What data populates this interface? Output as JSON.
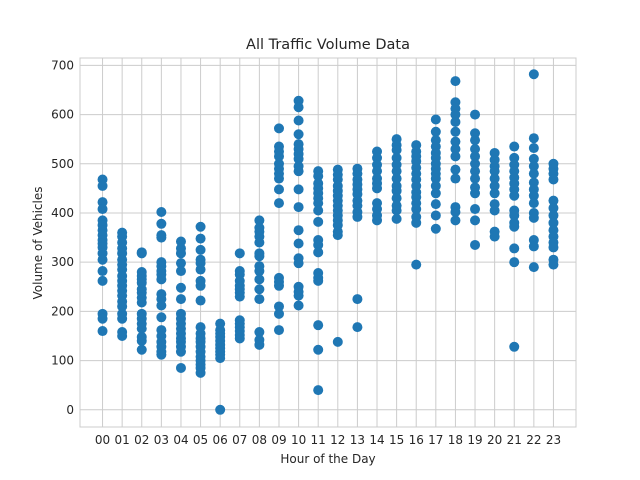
{
  "chart_data": {
    "type": "scatter",
    "title": "All Traffic Volume Data",
    "xlabel": "Hour of the Day",
    "ylabel": "Volume of Vehicles",
    "categories": [
      "00",
      "01",
      "02",
      "03",
      "04",
      "05",
      "06",
      "07",
      "08",
      "09",
      "10",
      "11",
      "12",
      "13",
      "14",
      "15",
      "16",
      "17",
      "18",
      "19",
      "20",
      "21",
      "22",
      "23"
    ],
    "ylim": [
      -35,
      715
    ],
    "yticks": [
      0,
      100,
      200,
      300,
      400,
      500,
      600,
      700
    ],
    "grid": true,
    "color": "#1f77b4",
    "points": [
      [
        "00",
        468
      ],
      [
        "00",
        455
      ],
      [
        "00",
        422
      ],
      [
        "00",
        408
      ],
      [
        "00",
        385
      ],
      [
        "00",
        375
      ],
      [
        "00",
        365
      ],
      [
        "00",
        355
      ],
      [
        "00",
        345
      ],
      [
        "00",
        338
      ],
      [
        "00",
        330
      ],
      [
        "00",
        318
      ],
      [
        "00",
        305
      ],
      [
        "00",
        282
      ],
      [
        "00",
        262
      ],
      [
        "00",
        195
      ],
      [
        "00",
        185
      ],
      [
        "00",
        160
      ],
      [
        "01",
        360
      ],
      [
        "01",
        352
      ],
      [
        "01",
        340
      ],
      [
        "01",
        328
      ],
      [
        "01",
        318
      ],
      [
        "01",
        305
      ],
      [
        "01",
        295
      ],
      [
        "01",
        285
      ],
      [
        "01",
        272
      ],
      [
        "01",
        262
      ],
      [
        "01",
        252
      ],
      [
        "01",
        242
      ],
      [
        "01",
        232
      ],
      [
        "01",
        220
      ],
      [
        "01",
        210
      ],
      [
        "01",
        195
      ],
      [
        "01",
        185
      ],
      [
        "01",
        158
      ],
      [
        "01",
        150
      ],
      [
        "02",
        320
      ],
      [
        "02",
        318
      ],
      [
        "02",
        280
      ],
      [
        "02",
        272
      ],
      [
        "02",
        265
      ],
      [
        "02",
        258
      ],
      [
        "02",
        245
      ],
      [
        "02",
        238
      ],
      [
        "02",
        228
      ],
      [
        "02",
        218
      ],
      [
        "02",
        195
      ],
      [
        "02",
        185
      ],
      [
        "02",
        175
      ],
      [
        "02",
        165
      ],
      [
        "02",
        148
      ],
      [
        "02",
        140
      ],
      [
        "02",
        122
      ],
      [
        "03",
        402
      ],
      [
        "03",
        378
      ],
      [
        "03",
        355
      ],
      [
        "03",
        350
      ],
      [
        "03",
        300
      ],
      [
        "03",
        292
      ],
      [
        "03",
        282
      ],
      [
        "03",
        275
      ],
      [
        "03",
        265
      ],
      [
        "03",
        235
      ],
      [
        "03",
        225
      ],
      [
        "03",
        212
      ],
      [
        "03",
        188
      ],
      [
        "03",
        162
      ],
      [
        "03",
        150
      ],
      [
        "03",
        138
      ],
      [
        "03",
        128
      ],
      [
        "03",
        118
      ],
      [
        "03",
        112
      ],
      [
        "04",
        342
      ],
      [
        "04",
        328
      ],
      [
        "04",
        318
      ],
      [
        "04",
        298
      ],
      [
        "04",
        282
      ],
      [
        "04",
        248
      ],
      [
        "04",
        225
      ],
      [
        "04",
        195
      ],
      [
        "04",
        185
      ],
      [
        "04",
        175
      ],
      [
        "04",
        165
      ],
      [
        "04",
        155
      ],
      [
        "04",
        145
      ],
      [
        "04",
        138
      ],
      [
        "04",
        128
      ],
      [
        "04",
        118
      ],
      [
        "04",
        85
      ],
      [
        "05",
        372
      ],
      [
        "05",
        348
      ],
      [
        "05",
        325
      ],
      [
        "05",
        305
      ],
      [
        "05",
        298
      ],
      [
        "05",
        285
      ],
      [
        "05",
        262
      ],
      [
        "05",
        252
      ],
      [
        "05",
        222
      ],
      [
        "05",
        168
      ],
      [
        "05",
        155
      ],
      [
        "05",
        145
      ],
      [
        "05",
        138
      ],
      [
        "05",
        128
      ],
      [
        "05",
        118
      ],
      [
        "05",
        108
      ],
      [
        "05",
        100
      ],
      [
        "05",
        92
      ],
      [
        "05",
        85
      ],
      [
        "05",
        75
      ],
      [
        "06",
        175
      ],
      [
        "06",
        162
      ],
      [
        "06",
        155
      ],
      [
        "06",
        148
      ],
      [
        "06",
        140
      ],
      [
        "06",
        132
      ],
      [
        "06",
        125
      ],
      [
        "06",
        118
      ],
      [
        "06",
        112
      ],
      [
        "06",
        105
      ],
      [
        "06",
        0
      ],
      [
        "07",
        318
      ],
      [
        "07",
        282
      ],
      [
        "07",
        275
      ],
      [
        "07",
        262
      ],
      [
        "07",
        252
      ],
      [
        "07",
        245
      ],
      [
        "07",
        238
      ],
      [
        "07",
        230
      ],
      [
        "07",
        182
      ],
      [
        "07",
        175
      ],
      [
        "07",
        168
      ],
      [
        "07",
        160
      ],
      [
        "07",
        152
      ],
      [
        "07",
        145
      ],
      [
        "08",
        385
      ],
      [
        "08",
        370
      ],
      [
        "08",
        362
      ],
      [
        "08",
        352
      ],
      [
        "08",
        340
      ],
      [
        "08",
        318
      ],
      [
        "08",
        312
      ],
      [
        "08",
        292
      ],
      [
        "08",
        282
      ],
      [
        "08",
        265
      ],
      [
        "08",
        245
      ],
      [
        "08",
        225
      ],
      [
        "08",
        158
      ],
      [
        "08",
        142
      ],
      [
        "08",
        132
      ],
      [
        "09",
        572
      ],
      [
        "09",
        535
      ],
      [
        "09",
        525
      ],
      [
        "09",
        515
      ],
      [
        "09",
        500
      ],
      [
        "09",
        490
      ],
      [
        "09",
        480
      ],
      [
        "09",
        470
      ],
      [
        "09",
        448
      ],
      [
        "09",
        420
      ],
      [
        "09",
        268
      ],
      [
        "09",
        260
      ],
      [
        "09",
        252
      ],
      [
        "09",
        210
      ],
      [
        "09",
        195
      ],
      [
        "09",
        162
      ],
      [
        "10",
        628
      ],
      [
        "10",
        615
      ],
      [
        "10",
        588
      ],
      [
        "10",
        560
      ],
      [
        "10",
        540
      ],
      [
        "10",
        530
      ],
      [
        "10",
        520
      ],
      [
        "10",
        510
      ],
      [
        "10",
        495
      ],
      [
        "10",
        485
      ],
      [
        "10",
        448
      ],
      [
        "10",
        412
      ],
      [
        "10",
        365
      ],
      [
        "10",
        338
      ],
      [
        "10",
        308
      ],
      [
        "10",
        298
      ],
      [
        "10",
        250
      ],
      [
        "10",
        240
      ],
      [
        "10",
        232
      ],
      [
        "10",
        212
      ],
      [
        "11",
        485
      ],
      [
        "11",
        475
      ],
      [
        "11",
        460
      ],
      [
        "11",
        450
      ],
      [
        "11",
        440
      ],
      [
        "11",
        430
      ],
      [
        "11",
        420
      ],
      [
        "11",
        405
      ],
      [
        "11",
        382
      ],
      [
        "11",
        345
      ],
      [
        "11",
        335
      ],
      [
        "11",
        320
      ],
      [
        "11",
        278
      ],
      [
        "11",
        268
      ],
      [
        "11",
        262
      ],
      [
        "11",
        172
      ],
      [
        "11",
        122
      ],
      [
        "11",
        40
      ],
      [
        "12",
        488
      ],
      [
        "12",
        478
      ],
      [
        "12",
        468
      ],
      [
        "12",
        455
      ],
      [
        "12",
        445
      ],
      [
        "12",
        435
      ],
      [
        "12",
        425
      ],
      [
        "12",
        415
      ],
      [
        "12",
        405
      ],
      [
        "12",
        395
      ],
      [
        "12",
        385
      ],
      [
        "12",
        375
      ],
      [
        "12",
        362
      ],
      [
        "12",
        355
      ],
      [
        "12",
        138
      ],
      [
        "13",
        490
      ],
      [
        "13",
        480
      ],
      [
        "13",
        468
      ],
      [
        "13",
        458
      ],
      [
        "13",
        448
      ],
      [
        "13",
        438
      ],
      [
        "13",
        425
      ],
      [
        "13",
        415
      ],
      [
        "13",
        402
      ],
      [
        "13",
        392
      ],
      [
        "13",
        225
      ],
      [
        "13",
        168
      ],
      [
        "14",
        525
      ],
      [
        "14",
        512
      ],
      [
        "14",
        498
      ],
      [
        "14",
        485
      ],
      [
        "14",
        470
      ],
      [
        "14",
        460
      ],
      [
        "14",
        450
      ],
      [
        "14",
        420
      ],
      [
        "14",
        408
      ],
      [
        "14",
        395
      ],
      [
        "14",
        385
      ],
      [
        "15",
        550
      ],
      [
        "15",
        538
      ],
      [
        "15",
        528
      ],
      [
        "15",
        512
      ],
      [
        "15",
        498
      ],
      [
        "15",
        485
      ],
      [
        "15",
        470
      ],
      [
        "15",
        455
      ],
      [
        "15",
        445
      ],
      [
        "15",
        430
      ],
      [
        "15",
        415
      ],
      [
        "15",
        405
      ],
      [
        "15",
        388
      ],
      [
        "16",
        538
      ],
      [
        "16",
        525
      ],
      [
        "16",
        515
      ],
      [
        "16",
        505
      ],
      [
        "16",
        492
      ],
      [
        "16",
        480
      ],
      [
        "16",
        468
      ],
      [
        "16",
        455
      ],
      [
        "16",
        442
      ],
      [
        "16",
        432
      ],
      [
        "16",
        420
      ],
      [
        "16",
        408
      ],
      [
        "16",
        392
      ],
      [
        "16",
        380
      ],
      [
        "16",
        295
      ],
      [
        "17",
        590
      ],
      [
        "17",
        565
      ],
      [
        "17",
        548
      ],
      [
        "17",
        535
      ],
      [
        "17",
        522
      ],
      [
        "17",
        512
      ],
      [
        "17",
        500
      ],
      [
        "17",
        490
      ],
      [
        "17",
        480
      ],
      [
        "17",
        470
      ],
      [
        "17",
        455
      ],
      [
        "17",
        440
      ],
      [
        "17",
        418
      ],
      [
        "17",
        395
      ],
      [
        "17",
        368
      ],
      [
        "18",
        668
      ],
      [
        "18",
        625
      ],
      [
        "18",
        612
      ],
      [
        "18",
        600
      ],
      [
        "18",
        585
      ],
      [
        "18",
        565
      ],
      [
        "18",
        545
      ],
      [
        "18",
        530
      ],
      [
        "18",
        515
      ],
      [
        "18",
        488
      ],
      [
        "18",
        470
      ],
      [
        "18",
        412
      ],
      [
        "18",
        402
      ],
      [
        "18",
        385
      ],
      [
        "19",
        600
      ],
      [
        "19",
        562
      ],
      [
        "19",
        548
      ],
      [
        "19",
        530
      ],
      [
        "19",
        515
      ],
      [
        "19",
        500
      ],
      [
        "19",
        485
      ],
      [
        "19",
        470
      ],
      [
        "19",
        452
      ],
      [
        "19",
        440
      ],
      [
        "19",
        408
      ],
      [
        "19",
        385
      ],
      [
        "19",
        335
      ],
      [
        "20",
        522
      ],
      [
        "20",
        508
      ],
      [
        "20",
        495
      ],
      [
        "20",
        485
      ],
      [
        "20",
        470
      ],
      [
        "20",
        455
      ],
      [
        "20",
        440
      ],
      [
        "20",
        418
      ],
      [
        "20",
        405
      ],
      [
        "20",
        362
      ],
      [
        "20",
        352
      ],
      [
        "21",
        535
      ],
      [
        "21",
        512
      ],
      [
        "21",
        498
      ],
      [
        "21",
        485
      ],
      [
        "21",
        472
      ],
      [
        "21",
        460
      ],
      [
        "21",
        448
      ],
      [
        "21",
        435
      ],
      [
        "21",
        405
      ],
      [
        "21",
        395
      ],
      [
        "21",
        380
      ],
      [
        "21",
        372
      ],
      [
        "21",
        328
      ],
      [
        "21",
        300
      ],
      [
        "21",
        128
      ],
      [
        "22",
        682
      ],
      [
        "22",
        552
      ],
      [
        "22",
        532
      ],
      [
        "22",
        510
      ],
      [
        "22",
        495
      ],
      [
        "22",
        480
      ],
      [
        "22",
        462
      ],
      [
        "22",
        448
      ],
      [
        "22",
        435
      ],
      [
        "22",
        420
      ],
      [
        "22",
        400
      ],
      [
        "22",
        390
      ],
      [
        "22",
        345
      ],
      [
        "22",
        332
      ],
      [
        "22",
        290
      ],
      [
        "23",
        500
      ],
      [
        "23",
        490
      ],
      [
        "23",
        480
      ],
      [
        "23",
        468
      ],
      [
        "23",
        425
      ],
      [
        "23",
        410
      ],
      [
        "23",
        395
      ],
      [
        "23",
        380
      ],
      [
        "23",
        365
      ],
      [
        "23",
        352
      ],
      [
        "23",
        340
      ],
      [
        "23",
        330
      ],
      [
        "23",
        305
      ],
      [
        "23",
        295
      ]
    ]
  }
}
